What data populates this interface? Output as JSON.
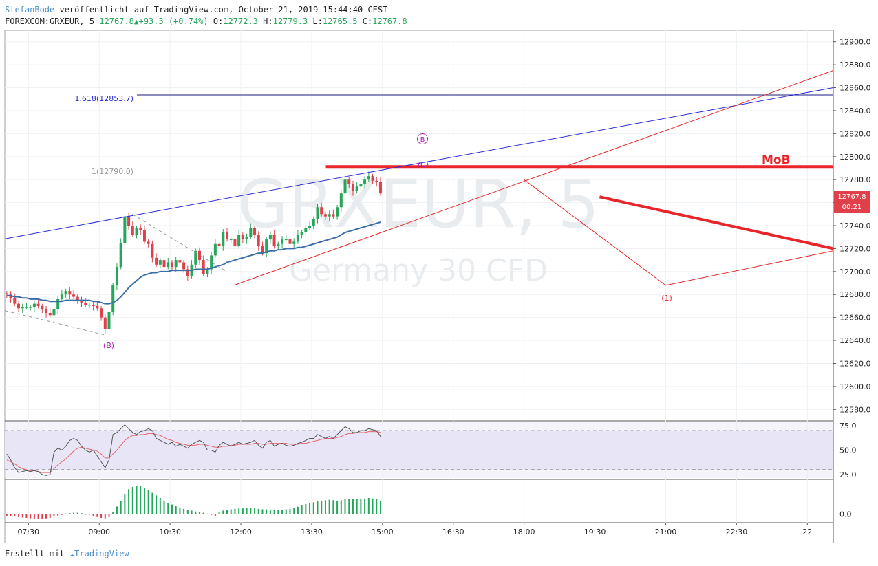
{
  "header": {
    "author": "StefanBode",
    "published": "veröffentlicht auf TradingView.com, October 21, 2019 15:44:40 CEST",
    "symbol": "FOREXCOM:GRXEUR, 5",
    "last": "12767.8",
    "change": "+93.3 (+0.74%)",
    "o_label": "O:",
    "o": "12772.3",
    "h_label": "H:",
    "h": "12779.3",
    "l_label": "L:",
    "l": "12765.5",
    "c_label": "C:",
    "c": "12767.8"
  },
  "watermark": {
    "symbol": "GRXEUR, 5",
    "name": "Germany 30 CFD"
  },
  "footer": {
    "made_with": "Erstellt mit",
    "brand": "TradingView"
  },
  "colors": {
    "up": "#26a65b",
    "down": "#e0404a",
    "ma": "#3a6ea5",
    "trend_blue": "#2b2bd8",
    "trend_red": "#e8262a",
    "wave": "#b21eb2"
  },
  "chart_data": [
    {
      "type": "candlestick",
      "ylim": [
        12570,
        12910
      ],
      "y_ticks": [
        12580,
        12600,
        12620,
        12640,
        12660,
        12680,
        12700,
        12720,
        12740,
        12760,
        12780,
        12800,
        12820,
        12840,
        12860,
        12880,
        12900
      ],
      "y_tick_labels": [
        "12580.0",
        "12600.0",
        "12620.0",
        "12640.0",
        "12660.0",
        "12680.0",
        "12700.0",
        "12720.0",
        "12740.0",
        "12760.0",
        "12780.0",
        "12800.0",
        "12820.0",
        "12840.0",
        "12860.0",
        "12880.0",
        "12900.0"
      ],
      "x_ticks": [
        "07:30",
        "09:00",
        "10:30",
        "12:00",
        "13:30",
        "15:00",
        "16:30",
        "18:00",
        "19:30",
        "21:00",
        "22:30",
        "22"
      ],
      "x_tick_hours": [
        7.5,
        9,
        10.5,
        12,
        13.5,
        15,
        16.5,
        18,
        19.5,
        21,
        22.5,
        24
      ],
      "x_range_hours": [
        7,
        24.55
      ],
      "price_label": "12767.8",
      "countdown": "00:21",
      "close": [
        12680,
        12677,
        12672,
        12668,
        12669,
        12669,
        12669,
        12672,
        12670,
        12667,
        12664,
        12662,
        12667,
        12676,
        12680,
        12683,
        12680,
        12678,
        12675,
        12673,
        12671,
        12671,
        12670,
        12668,
        12660,
        12650,
        12665,
        12688,
        12704,
        12725,
        12748,
        12740,
        12732,
        12738,
        12736,
        12726,
        12724,
        12712,
        12706,
        12710,
        12704,
        12708,
        12704,
        12710,
        12708,
        12702,
        12696,
        12706,
        12718,
        12710,
        12698,
        12702,
        12714,
        12724,
        12722,
        12734,
        12728,
        12728,
        12722,
        12732,
        12728,
        12730,
        12738,
        12732,
        12722,
        12716,
        12728,
        12732,
        12722,
        12724,
        12728,
        12728,
        12724,
        12726,
        12732,
        12734,
        12738,
        12740,
        12746,
        12756,
        12750,
        12748,
        12750,
        12748,
        12756,
        12768,
        12780,
        12776,
        12770,
        12774,
        12776,
        12780,
        12783,
        12779,
        12778,
        12768
      ],
      "ma": [
        12679,
        12679,
        12678,
        12678,
        12677,
        12677,
        12676,
        12676,
        12676,
        12675,
        12675,
        12674,
        12674,
        12674,
        12674,
        12675,
        12675,
        12675,
        12675,
        12675,
        12675,
        12675,
        12674,
        12674,
        12673,
        12672,
        12672,
        12673,
        12675,
        12678,
        12682,
        12686,
        12689,
        12692,
        12695,
        12697,
        12698,
        12699,
        12699,
        12700,
        12700,
        12700,
        12701,
        12701,
        12701,
        12701,
        12701,
        12701,
        12702,
        12702,
        12702,
        12702,
        12703,
        12704,
        12705,
        12706,
        12708,
        12709,
        12710,
        12711,
        12712,
        12713,
        12714,
        12715,
        12716,
        12716,
        12717,
        12718,
        12718,
        12719,
        12719,
        12720,
        12720,
        12720,
        12721,
        12721,
        12722,
        12723,
        12724,
        12725,
        12726,
        12727,
        12728,
        12729,
        12730,
        12732,
        12734,
        12735,
        12736,
        12737,
        12738,
        12739,
        12740,
        12741,
        12742,
        12743
      ],
      "fib_levels": [
        {
          "label": "1.618(12853.7)",
          "value": 12853.7
        },
        {
          "label": "1(12790.0)",
          "value": 12790.0
        }
      ],
      "mob_label": "MoB",
      "mob_level": 12791,
      "wave_labels": [
        {
          "text": "(B)",
          "x_hour": 9.15,
          "y": 12641
        },
        {
          "text": "B",
          "x_hour": 15.8,
          "y": 12818,
          "circled": true
        },
        {
          "text": "(C)",
          "x_hour": 15.8,
          "y": 12795
        },
        {
          "text": "(1)",
          "x_hour": 21.0,
          "y": 12682
        }
      ],
      "trendlines": [
        {
          "color": "blue",
          "from": [
            7,
            12728.5
          ],
          "to": [
            24.55,
            12860
          ]
        },
        {
          "color": "red",
          "from": [
            11.85,
            12688
          ],
          "to": [
            24.55,
            12875
          ]
        },
        {
          "color": "red",
          "from": [
            18.0,
            12780
          ],
          "to": [
            21.0,
            12688
          ]
        },
        {
          "color": "red",
          "from": [
            21.0,
            12688
          ],
          "to": [
            24.55,
            12718
          ]
        },
        {
          "color": "red",
          "width": "thick",
          "from": [
            19.6,
            12765
          ],
          "to": [
            24.55,
            12720
          ]
        },
        {
          "color": "dashed",
          "from": [
            7,
            12666
          ],
          "to": [
            9.1,
            12645
          ]
        },
        {
          "color": "dashed",
          "from": [
            9.7,
            12750
          ],
          "to": [
            11.7,
            12700
          ]
        }
      ]
    },
    {
      "type": "line",
      "name": "RSI",
      "ylim": [
        20,
        80
      ],
      "y_ticks": [
        25,
        50,
        75
      ],
      "y_tick_labels": [
        "25.0",
        "50.0",
        "75.0"
      ],
      "band": [
        30,
        70
      ],
      "values": [
        46,
        40,
        32,
        27,
        28,
        29,
        28,
        29,
        28,
        25,
        24,
        25,
        48,
        52,
        50,
        54,
        60,
        62,
        60,
        54,
        50,
        48,
        50,
        44,
        38,
        32,
        40,
        66,
        68,
        72,
        76,
        72,
        68,
        66,
        69,
        70,
        72,
        70,
        62,
        60,
        58,
        56,
        58,
        54,
        56,
        54,
        52,
        56,
        58,
        60,
        58,
        50,
        50,
        48,
        55,
        58,
        56,
        54,
        56,
        58,
        56,
        57,
        58,
        60,
        55,
        52,
        58,
        60,
        54,
        56,
        57,
        55,
        54,
        55,
        57,
        58,
        60,
        62,
        62,
        66,
        64,
        62,
        64,
        62,
        66,
        70,
        74,
        72,
        68,
        68,
        70,
        70,
        72,
        71,
        70,
        64
      ],
      "smooth": [
        40,
        38,
        36,
        33,
        31,
        30,
        29,
        29,
        28,
        27,
        27,
        27,
        31,
        35,
        38,
        41,
        45,
        49,
        52,
        53,
        52,
        51,
        50,
        49,
        46,
        42,
        42,
        46,
        50,
        55,
        60,
        63,
        65,
        65,
        66,
        66,
        67,
        67,
        66,
        65,
        63,
        61,
        60,
        58,
        57,
        56,
        55,
        55,
        55,
        56,
        56,
        55,
        54,
        53,
        53,
        54,
        54,
        55,
        55,
        56,
        56,
        56,
        56,
        57,
        57,
        56,
        56,
        57,
        57,
        57,
        57,
        57,
        56,
        56,
        56,
        57,
        57,
        58,
        59,
        60,
        61,
        62,
        62,
        62,
        63,
        64,
        66,
        67,
        67,
        68,
        68,
        68,
        69,
        69,
        69,
        68
      ]
    },
    {
      "type": "bar",
      "name": "Histogram",
      "ylim": [
        -0.4,
        1.6
      ],
      "y_ticks": [
        0
      ],
      "y_tick_labels": [
        "0.0"
      ],
      "values": [
        -0.08,
        -0.1,
        -0.12,
        -0.14,
        -0.16,
        -0.18,
        -0.2,
        -0.22,
        -0.22,
        -0.22,
        -0.2,
        -0.18,
        -0.12,
        -0.08,
        -0.04,
        0.02,
        0.04,
        0.06,
        0.06,
        0.04,
        0.0,
        -0.04,
        -0.1,
        -0.14,
        -0.18,
        -0.2,
        -0.14,
        0.1,
        0.35,
        0.6,
        0.9,
        1.15,
        1.25,
        1.3,
        1.28,
        1.2,
        1.1,
        0.98,
        0.86,
        0.74,
        0.62,
        0.52,
        0.44,
        0.36,
        0.3,
        0.24,
        0.2,
        0.16,
        0.12,
        0.1,
        0.06,
        0.02,
        -0.04,
        -0.08,
        0.1,
        0.16,
        0.2,
        0.22,
        0.24,
        0.26,
        0.26,
        0.28,
        0.28,
        0.26,
        0.24,
        0.22,
        0.22,
        0.2,
        0.2,
        0.18,
        0.2,
        0.22,
        0.24,
        0.28,
        0.34,
        0.4,
        0.46,
        0.5,
        0.54,
        0.58,
        0.62,
        0.64,
        0.66,
        0.64,
        0.62,
        0.64,
        0.68,
        0.7,
        0.68,
        0.68,
        0.7,
        0.72,
        0.74,
        0.72,
        0.7,
        0.62
      ]
    }
  ]
}
